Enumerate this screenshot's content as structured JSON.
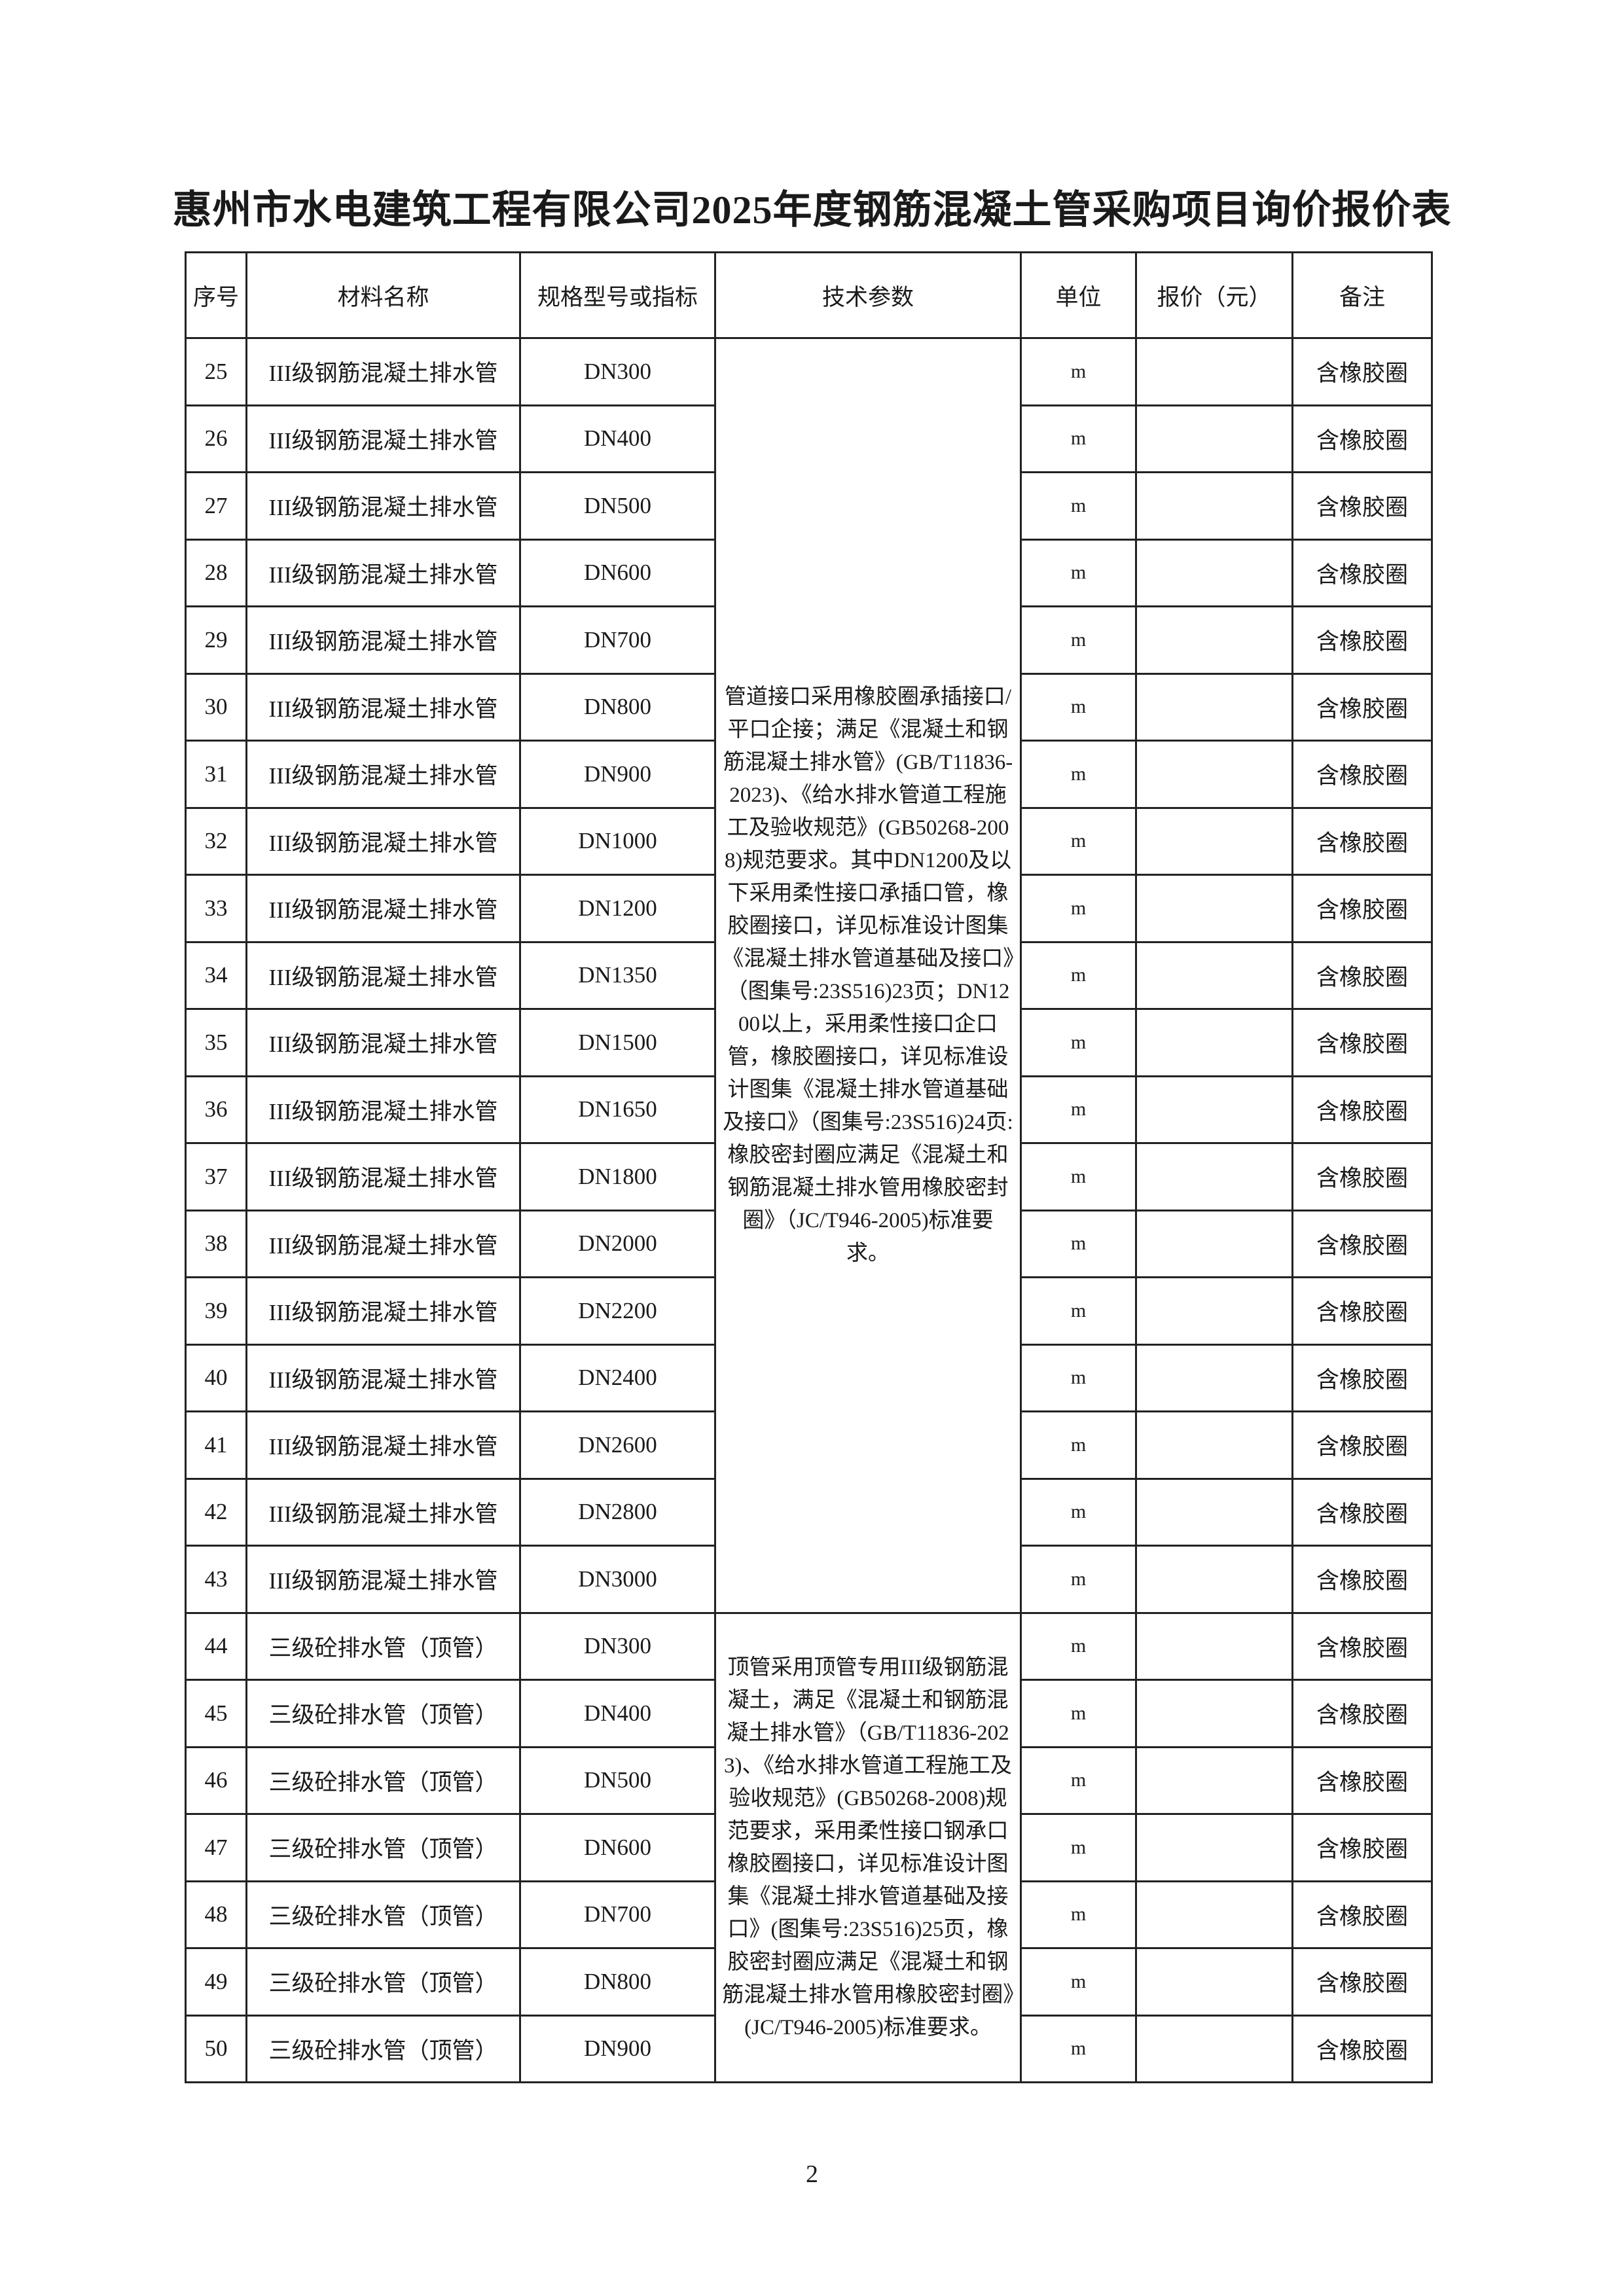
{
  "title": "惠州市水电建筑工程有限公司2025年度钢筋混凝土管采购项目询价报价表",
  "headers": [
    "序号",
    "材料名称",
    "规格型号或指标",
    "技术参数",
    "单位",
    "报价（元）",
    "备注"
  ],
  "tech_groups": [
    {
      "from": 25,
      "to": 43,
      "text": "管道接口采用橡胶圈承插接口/平口企接；满足《混凝土和钢筋混凝土排水管》(GB/T11836-2023)、《给水排水管道工程施工及验收规范》(GB50268-2008)规范要求。其中DN1200及以下采用柔性接口承插口管，橡胶圈接口，详见标准设计图集《混凝土排水管道基础及接口》（图集号:23S516)23页；DN1200以上，采用柔性接口企口管，橡胶圈接口，详见标准设计图集《混凝土排水管道基础及接口》（图集号:23S516)24页:橡胶密封圈应满足《混凝土和钢筋混凝土排水管用橡胶密封圈》（JC/T946-2005)标准要求。"
    },
    {
      "from": 44,
      "to": 50,
      "text": "顶管采用顶管专用III级钢筋混凝土，满足《混凝土和钢筋混凝土排水管》（GB/T11836-2023)、《给水排水管道工程施工及验收规范》(GB50268-2008)规范要求，采用柔性接口钢承口橡胶圈接口，详见标准设计图集《混凝土排水管道基础及接口》(图集号:23S516)25页，橡胶密封圈应满足《混凝土和钢筋混凝土排水管用橡胶密封圈》(JC/T946-2005)标准要求。"
    }
  ],
  "rows": [
    {
      "no": "25",
      "name": "III级钢筋混凝土排水管",
      "spec": "DN300",
      "unit": "m",
      "price": "",
      "note": "含橡胶圈"
    },
    {
      "no": "26",
      "name": "III级钢筋混凝土排水管",
      "spec": "DN400",
      "unit": "m",
      "price": "",
      "note": "含橡胶圈"
    },
    {
      "no": "27",
      "name": "III级钢筋混凝土排水管",
      "spec": "DN500",
      "unit": "m",
      "price": "",
      "note": "含橡胶圈"
    },
    {
      "no": "28",
      "name": "III级钢筋混凝土排水管",
      "spec": "DN600",
      "unit": "m",
      "price": "",
      "note": "含橡胶圈"
    },
    {
      "no": "29",
      "name": "III级钢筋混凝土排水管",
      "spec": "DN700",
      "unit": "m",
      "price": "",
      "note": "含橡胶圈"
    },
    {
      "no": "30",
      "name": "III级钢筋混凝土排水管",
      "spec": "DN800",
      "unit": "m",
      "price": "",
      "note": "含橡胶圈"
    },
    {
      "no": "31",
      "name": "III级钢筋混凝土排水管",
      "spec": "DN900",
      "unit": "m",
      "price": "",
      "note": "含橡胶圈"
    },
    {
      "no": "32",
      "name": "III级钢筋混凝土排水管",
      "spec": "DN1000",
      "unit": "m",
      "price": "",
      "note": "含橡胶圈"
    },
    {
      "no": "33",
      "name": "III级钢筋混凝土排水管",
      "spec": "DN1200",
      "unit": "m",
      "price": "",
      "note": "含橡胶圈"
    },
    {
      "no": "34",
      "name": "III级钢筋混凝土排水管",
      "spec": "DN1350",
      "unit": "m",
      "price": "",
      "note": "含橡胶圈"
    },
    {
      "no": "35",
      "name": "III级钢筋混凝土排水管",
      "spec": "DN1500",
      "unit": "m",
      "price": "",
      "note": "含橡胶圈"
    },
    {
      "no": "36",
      "name": "III级钢筋混凝土排水管",
      "spec": "DN1650",
      "unit": "m",
      "price": "",
      "note": "含橡胶圈"
    },
    {
      "no": "37",
      "name": "III级钢筋混凝土排水管",
      "spec": "DN1800",
      "unit": "m",
      "price": "",
      "note": "含橡胶圈"
    },
    {
      "no": "38",
      "name": "III级钢筋混凝土排水管",
      "spec": "DN2000",
      "unit": "m",
      "price": "",
      "note": "含橡胶圈"
    },
    {
      "no": "39",
      "name": "III级钢筋混凝土排水管",
      "spec": "DN2200",
      "unit": "m",
      "price": "",
      "note": "含橡胶圈"
    },
    {
      "no": "40",
      "name": "III级钢筋混凝土排水管",
      "spec": "DN2400",
      "unit": "m",
      "price": "",
      "note": "含橡胶圈"
    },
    {
      "no": "41",
      "name": "III级钢筋混凝土排水管",
      "spec": "DN2600",
      "unit": "m",
      "price": "",
      "note": "含橡胶圈"
    },
    {
      "no": "42",
      "name": "III级钢筋混凝土排水管",
      "spec": "DN2800",
      "unit": "m",
      "price": "",
      "note": "含橡胶圈"
    },
    {
      "no": "43",
      "name": "III级钢筋混凝土排水管",
      "spec": "DN3000",
      "unit": "m",
      "price": "",
      "note": "含橡胶圈"
    },
    {
      "no": "44",
      "name": "三级砼排水管（顶管）",
      "spec": "DN300",
      "unit": "m",
      "price": "",
      "note": "含橡胶圈"
    },
    {
      "no": "45",
      "name": "三级砼排水管（顶管）",
      "spec": "DN400",
      "unit": "m",
      "price": "",
      "note": "含橡胶圈"
    },
    {
      "no": "46",
      "name": "三级砼排水管（顶管）",
      "spec": "DN500",
      "unit": "m",
      "price": "",
      "note": "含橡胶圈"
    },
    {
      "no": "47",
      "name": "三级砼排水管（顶管）",
      "spec": "DN600",
      "unit": "m",
      "price": "",
      "note": "含橡胶圈"
    },
    {
      "no": "48",
      "name": "三级砼排水管（顶管）",
      "spec": "DN700",
      "unit": "m",
      "price": "",
      "note": "含橡胶圈"
    },
    {
      "no": "49",
      "name": "三级砼排水管（顶管）",
      "spec": "DN800",
      "unit": "m",
      "price": "",
      "note": "含橡胶圈"
    },
    {
      "no": "50",
      "name": "三级砼排水管（顶管）",
      "spec": "DN900",
      "unit": "m",
      "price": "",
      "note": "含橡胶圈"
    }
  ],
  "page_number": "2"
}
